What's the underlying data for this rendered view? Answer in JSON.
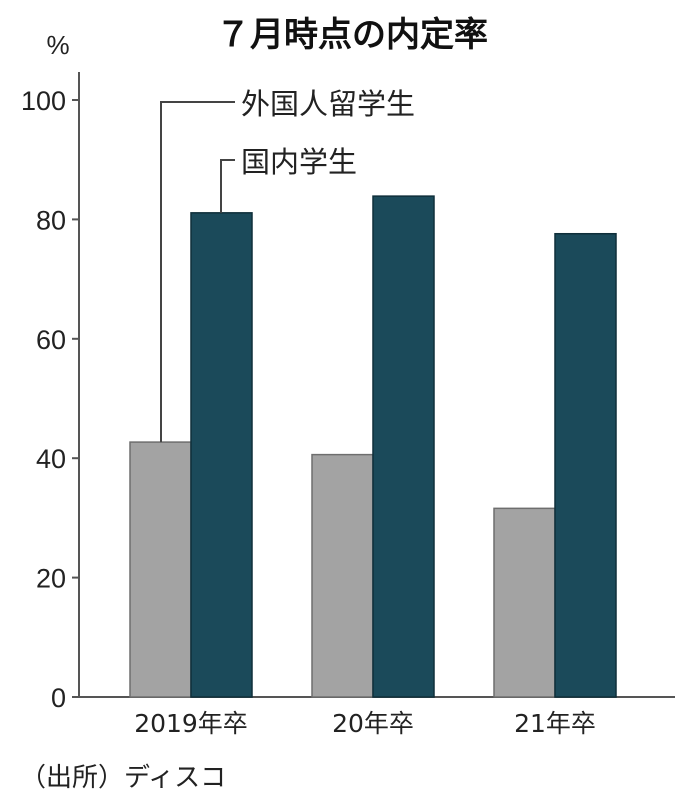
{
  "chart_data": {
    "type": "bar",
    "title": "７月時点の内定率",
    "unit": "%",
    "categories": [
      "2019年卒",
      "20年卒",
      "21年卒"
    ],
    "series": [
      {
        "name": "外国人留学生",
        "values": [
          42.7,
          40.6,
          31.6
        ],
        "color": "#a3a3a3"
      },
      {
        "name": "国内学生",
        "values": [
          81.1,
          83.9,
          77.6
        ],
        "color": "#1b4a5a"
      }
    ],
    "ylim": [
      0,
      100
    ],
    "yticks": [
      "0",
      "20",
      "40",
      "60",
      "80",
      "100"
    ],
    "grid": false,
    "source": "（出所）ディスコ"
  }
}
